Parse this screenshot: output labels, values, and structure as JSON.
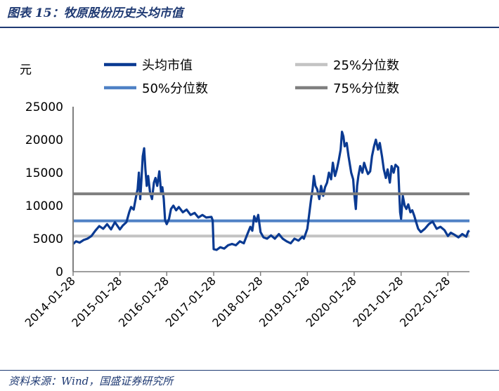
{
  "figure": {
    "title": "图表 15：牧原股份历史头均市值",
    "source": "资料来源：Wind，国盛证券研究所"
  },
  "colors": {
    "series": "#0a3a92",
    "p25": "#c3c3c3",
    "p50": "#4f81c5",
    "p75": "#7f7f7f",
    "brand": "#1f3a73"
  },
  "chart_data": {
    "type": "line",
    "ylabel": "元",
    "ylim": [
      0,
      25000
    ],
    "yticks": [
      0,
      5000,
      10000,
      15000,
      20000,
      25000
    ],
    "xlim": [
      "2014-01-28",
      "2022-07-15"
    ],
    "xticks": [
      "2014-01-28",
      "2015-01-28",
      "2016-01-28",
      "2017-01-28",
      "2018-01-28",
      "2019-01-28",
      "2020-01-28",
      "2021-01-28",
      "2022-01-28"
    ],
    "legend": [
      {
        "key": "series",
        "label": "头均市值"
      },
      {
        "key": "p25",
        "label": "25%分位数"
      },
      {
        "key": "p50",
        "label": "50%分位数"
      },
      {
        "key": "p75",
        "label": "75%分位数"
      }
    ],
    "legend_position": "top",
    "reference_lines": [
      {
        "name": "25%分位数",
        "value": 5400
      },
      {
        "name": "50%分位数",
        "value": 7700
      },
      {
        "name": "75%分位数",
        "value": 11800
      }
    ],
    "series": [
      {
        "name": "头均市值",
        "points": [
          [
            "2014-01-28",
            4200
          ],
          [
            "2014-02-20",
            4600
          ],
          [
            "2014-03-20",
            4400
          ],
          [
            "2014-04-20",
            4800
          ],
          [
            "2014-05-20",
            5000
          ],
          [
            "2014-06-20",
            5400
          ],
          [
            "2014-07-20",
            6200
          ],
          [
            "2014-08-20",
            6900
          ],
          [
            "2014-09-20",
            6500
          ],
          [
            "2014-10-20",
            7200
          ],
          [
            "2014-11-20",
            6400
          ],
          [
            "2014-12-20",
            7500
          ],
          [
            "2015-01-28",
            6400
          ],
          [
            "2015-02-20",
            7000
          ],
          [
            "2015-03-20",
            7500
          ],
          [
            "2015-04-10",
            9000
          ],
          [
            "2015-04-25",
            9800
          ],
          [
            "2015-05-15",
            9400
          ],
          [
            "2015-06-01",
            11200
          ],
          [
            "2015-06-15",
            12500
          ],
          [
            "2015-06-25",
            15000
          ],
          [
            "2015-07-05",
            11000
          ],
          [
            "2015-07-15",
            14000
          ],
          [
            "2015-07-25",
            17500
          ],
          [
            "2015-08-05",
            18700
          ],
          [
            "2015-08-15",
            15500
          ],
          [
            "2015-08-25",
            13000
          ],
          [
            "2015-09-05",
            14500
          ],
          [
            "2015-09-20",
            12000
          ],
          [
            "2015-10-05",
            11000
          ],
          [
            "2015-10-20",
            13500
          ],
          [
            "2015-11-01",
            14200
          ],
          [
            "2015-11-15",
            13000
          ],
          [
            "2015-12-01",
            15200
          ],
          [
            "2015-12-15",
            12000
          ],
          [
            "2015-12-25",
            12800
          ],
          [
            "2016-01-05",
            11000
          ],
          [
            "2016-01-15",
            7800
          ],
          [
            "2016-01-28",
            7200
          ],
          [
            "2016-02-15",
            8000
          ],
          [
            "2016-03-01",
            9500
          ],
          [
            "2016-03-20",
            10000
          ],
          [
            "2016-04-10",
            9300
          ],
          [
            "2016-05-01",
            9800
          ],
          [
            "2016-06-01",
            9000
          ],
          [
            "2016-07-01",
            9400
          ],
          [
            "2016-08-01",
            8600
          ],
          [
            "2016-09-01",
            8900
          ],
          [
            "2016-10-01",
            8200
          ],
          [
            "2016-11-01",
            8600
          ],
          [
            "2016-12-01",
            8200
          ],
          [
            "2017-01-10",
            8300
          ],
          [
            "2017-01-20",
            7800
          ],
          [
            "2017-01-28",
            3400
          ],
          [
            "2017-02-20",
            3300
          ],
          [
            "2017-03-20",
            3700
          ],
          [
            "2017-04-20",
            3500
          ],
          [
            "2017-05-20",
            4000
          ],
          [
            "2017-06-20",
            4200
          ],
          [
            "2017-07-20",
            4000
          ],
          [
            "2017-08-20",
            4600
          ],
          [
            "2017-09-20",
            4300
          ],
          [
            "2017-10-20",
            5800
          ],
          [
            "2017-11-10",
            6800
          ],
          [
            "2017-11-25",
            6200
          ],
          [
            "2017-12-10",
            8400
          ],
          [
            "2017-12-25",
            7600
          ],
          [
            "2018-01-10",
            8600
          ],
          [
            "2018-01-28",
            6000
          ],
          [
            "2018-02-20",
            5200
          ],
          [
            "2018-03-20",
            5000
          ],
          [
            "2018-04-20",
            5500
          ],
          [
            "2018-05-20",
            5000
          ],
          [
            "2018-06-20",
            5700
          ],
          [
            "2018-07-20",
            5000
          ],
          [
            "2018-08-20",
            4600
          ],
          [
            "2018-09-20",
            4300
          ],
          [
            "2018-10-20",
            5000
          ],
          [
            "2018-11-20",
            4700
          ],
          [
            "2018-12-20",
            5300
          ],
          [
            "2019-01-01",
            5000
          ],
          [
            "2019-01-28",
            6500
          ],
          [
            "2019-02-10",
            8500
          ],
          [
            "2019-02-25",
            10800
          ],
          [
            "2019-03-10",
            12500
          ],
          [
            "2019-03-20",
            14500
          ],
          [
            "2019-04-01",
            13000
          ],
          [
            "2019-04-15",
            12500
          ],
          [
            "2019-05-01",
            11000
          ],
          [
            "2019-05-15",
            13000
          ],
          [
            "2019-06-01",
            11500
          ],
          [
            "2019-06-15",
            12800
          ],
          [
            "2019-07-01",
            13500
          ],
          [
            "2019-07-15",
            15000
          ],
          [
            "2019-08-01",
            14000
          ],
          [
            "2019-08-15",
            16500
          ],
          [
            "2019-09-01",
            14500
          ],
          [
            "2019-09-15",
            15500
          ],
          [
            "2019-10-01",
            17000
          ],
          [
            "2019-10-15",
            18500
          ],
          [
            "2019-10-25",
            21200
          ],
          [
            "2019-11-05",
            20500
          ],
          [
            "2019-11-15",
            19000
          ],
          [
            "2019-12-01",
            19500
          ],
          [
            "2019-12-15",
            17500
          ],
          [
            "2020-01-05",
            15000
          ],
          [
            "2020-01-20",
            14000
          ],
          [
            "2020-01-28",
            12000
          ],
          [
            "2020-02-10",
            9500
          ],
          [
            "2020-02-20",
            13000
          ],
          [
            "2020-03-01",
            14500
          ],
          [
            "2020-03-15",
            16000
          ],
          [
            "2020-04-01",
            15000
          ],
          [
            "2020-04-15",
            16500
          ],
          [
            "2020-05-01",
            15500
          ],
          [
            "2020-05-15",
            14800
          ],
          [
            "2020-06-01",
            15200
          ],
          [
            "2020-06-15",
            17500
          ],
          [
            "2020-07-01",
            19000
          ],
          [
            "2020-07-15",
            20000
          ],
          [
            "2020-08-01",
            18500
          ],
          [
            "2020-08-15",
            19500
          ],
          [
            "2020-09-01",
            17500
          ],
          [
            "2020-09-15",
            15500
          ],
          [
            "2020-10-01",
            14200
          ],
          [
            "2020-10-15",
            15500
          ],
          [
            "2020-11-01",
            13500
          ],
          [
            "2020-11-15",
            16000
          ],
          [
            "2020-12-01",
            15000
          ],
          [
            "2020-12-15",
            16200
          ],
          [
            "2021-01-05",
            15800
          ],
          [
            "2021-01-20",
            9000
          ],
          [
            "2021-01-28",
            8000
          ],
          [
            "2021-02-10",
            11500
          ],
          [
            "2021-02-25",
            10000
          ],
          [
            "2021-03-10",
            9500
          ],
          [
            "2021-03-25",
            10200
          ],
          [
            "2021-04-10",
            9000
          ],
          [
            "2021-04-25",
            9300
          ],
          [
            "2021-05-10",
            8500
          ],
          [
            "2021-05-25",
            7500
          ],
          [
            "2021-06-10",
            6500
          ],
          [
            "2021-07-01",
            6000
          ],
          [
            "2021-08-01",
            6500
          ],
          [
            "2021-09-01",
            7200
          ],
          [
            "2021-10-01",
            7600
          ],
          [
            "2021-11-01",
            6500
          ],
          [
            "2021-12-01",
            6800
          ],
          [
            "2022-01-01",
            6300
          ],
          [
            "2022-01-28",
            5400
          ],
          [
            "2022-02-20",
            5900
          ],
          [
            "2022-03-20",
            5600
          ],
          [
            "2022-04-20",
            5200
          ],
          [
            "2022-05-20",
            5700
          ],
          [
            "2022-06-20",
            5300
          ],
          [
            "2022-07-05",
            6100
          ],
          [
            "2022-07-15",
            6200
          ]
        ]
      }
    ]
  }
}
